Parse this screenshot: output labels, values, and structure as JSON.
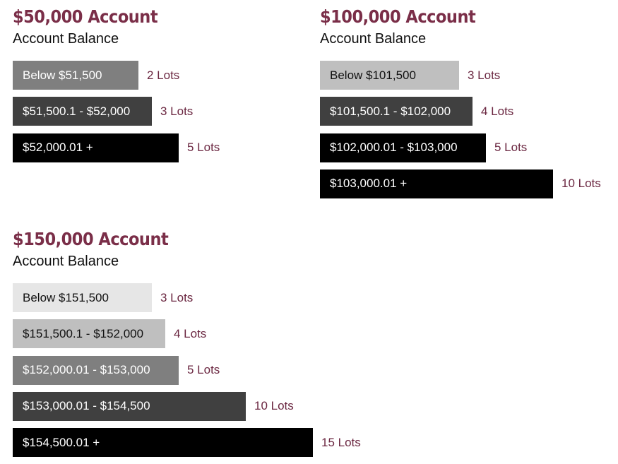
{
  "theme": {
    "accent": "#7a2e48",
    "label_color": "#6b2741"
  },
  "chart_data": [
    {
      "type": "bar",
      "orientation": "horizontal",
      "title": "$50,000 Account",
      "subtitle": "Account Balance",
      "categories": [
        "Below $51,500",
        "$51,500.1 - $52,000",
        "$52,000.01 +"
      ],
      "values": [
        2,
        3,
        5
      ],
      "value_labels": [
        "2 Lots",
        "3 Lots",
        "5 Lots"
      ],
      "bar_colors": [
        "#7f7f7f",
        "#404040",
        "#000000"
      ],
      "text_colors": [
        "#ffffff",
        "#ffffff",
        "#ffffff"
      ]
    },
    {
      "type": "bar",
      "orientation": "horizontal",
      "title": "$100,000 Account",
      "subtitle": "Account Balance",
      "categories": [
        "Below $101,500",
        "$101,500.1 - $102,000",
        "$102,000.01 - $103,000",
        "$103,000.01 +"
      ],
      "values": [
        3,
        4,
        5,
        10
      ],
      "value_labels": [
        "3 Lots",
        "4 Lots",
        "5 Lots",
        "10 Lots"
      ],
      "bar_colors": [
        "#bfbfbf",
        "#404040",
        "#000000",
        "#000000"
      ],
      "text_colors": [
        "#111111",
        "#ffffff",
        "#ffffff",
        "#ffffff"
      ]
    },
    {
      "type": "bar",
      "orientation": "horizontal",
      "title": "$150,000 Account",
      "subtitle": "Account Balance",
      "categories": [
        "Below $151,500",
        "$151,500.1 - $152,000",
        "$152,000.01 - $153,000",
        "$153,000.01 - $154,500",
        "$154,500.01 +"
      ],
      "values": [
        3,
        4,
        5,
        10,
        15
      ],
      "value_labels": [
        "3 Lots",
        "4 Lots",
        "5 Lots",
        "10 Lots",
        "15 Lots"
      ],
      "bar_colors": [
        "#e6e6e6",
        "#bfbfbf",
        "#7f7f7f",
        "#404040",
        "#000000"
      ],
      "text_colors": [
        "#111111",
        "#111111",
        "#ffffff",
        "#ffffff",
        "#ffffff"
      ]
    }
  ]
}
